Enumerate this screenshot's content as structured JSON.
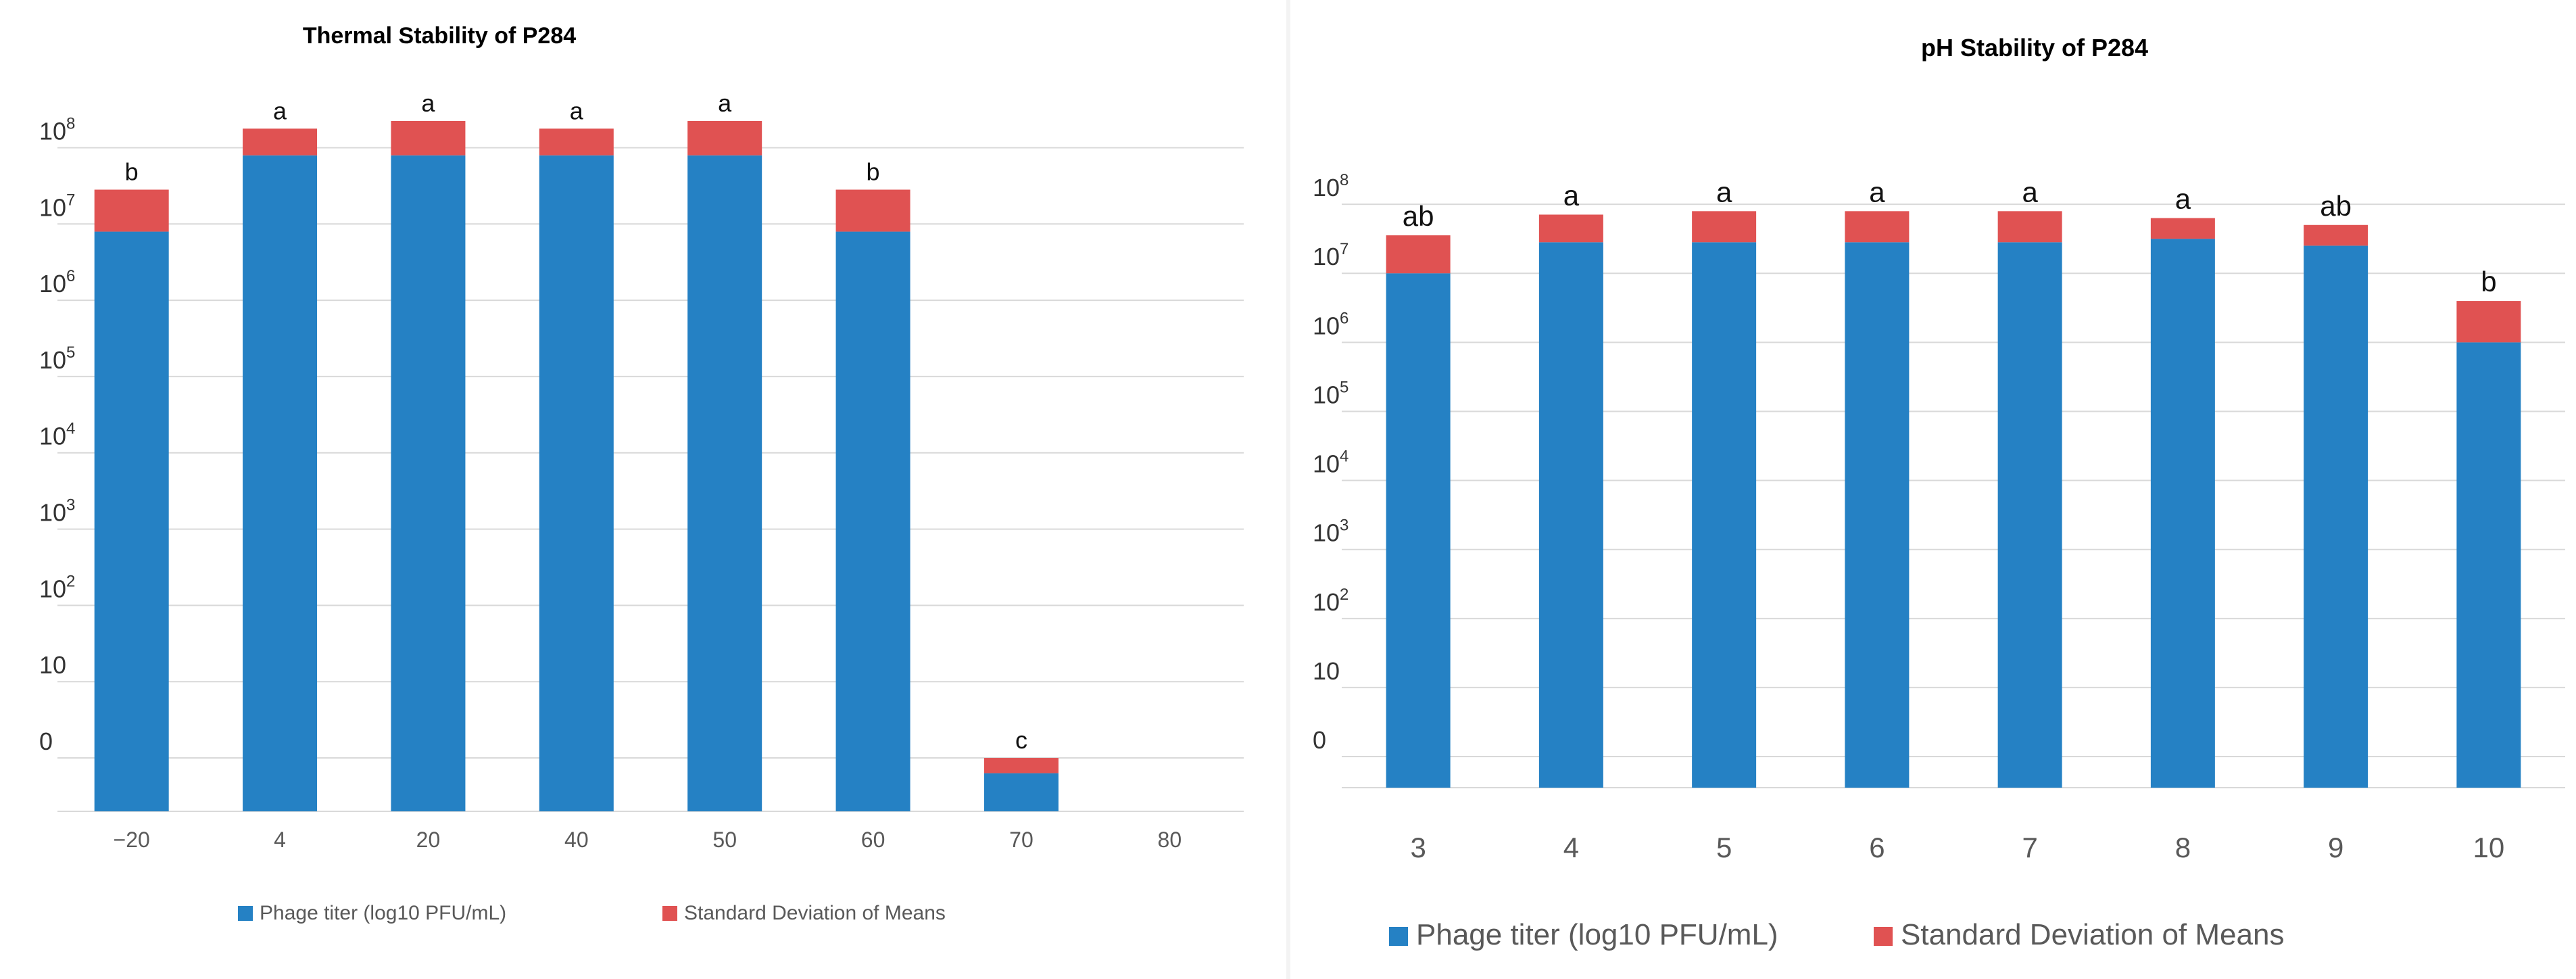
{
  "colors": {
    "titer": "#2581c4",
    "sd": "#e05252",
    "grid": "#d9d9d9"
  },
  "chart_data": [
    {
      "type": "bar",
      "stacked": true,
      "title": "Thermal Stability of P284",
      "xlabel": "",
      "ylabel": "",
      "y_tick_labels": [
        {
          "base": "0",
          "exp": ""
        },
        {
          "base": "10",
          "exp": ""
        },
        {
          "base": "10",
          "exp": "2"
        },
        {
          "base": "10",
          "exp": "3"
        },
        {
          "base": "10",
          "exp": "4"
        },
        {
          "base": "10",
          "exp": "5"
        },
        {
          "base": "10",
          "exp": "6"
        },
        {
          "base": "10",
          "exp": "7"
        },
        {
          "base": "10",
          "exp": "8"
        }
      ],
      "categories": [
        "−20",
        "4",
        "20",
        "40",
        "50",
        "60",
        "70",
        "80"
      ],
      "series": [
        {
          "name": "Phage titer (log10 PFU/mL)",
          "values": [
            6.9,
            7.9,
            7.9,
            7.9,
            7.9,
            6.9,
            -0.2,
            0
          ]
        },
        {
          "name": "Standard Deviation of Means",
          "values": [
            0.55,
            0.35,
            0.45,
            0.35,
            0.45,
            0.55,
            0.2,
            0
          ]
        }
      ],
      "annotations": [
        "b",
        "a",
        "a",
        "a",
        "a",
        "b",
        "c",
        ""
      ],
      "ylim": [
        -0.7,
        9.05
      ],
      "grid": true,
      "legend": "bottom"
    },
    {
      "type": "bar",
      "stacked": true,
      "title": "pH  Stability of P284",
      "xlabel": "",
      "ylabel": "",
      "y_tick_labels": [
        {
          "base": "0",
          "exp": ""
        },
        {
          "base": "10",
          "exp": ""
        },
        {
          "base": "10",
          "exp": "2"
        },
        {
          "base": "10",
          "exp": "3"
        },
        {
          "base": "10",
          "exp": "4"
        },
        {
          "base": "10",
          "exp": "5"
        },
        {
          "base": "10",
          "exp": "6"
        },
        {
          "base": "10",
          "exp": "7"
        },
        {
          "base": "10",
          "exp": "8"
        }
      ],
      "categories": [
        "3",
        "4",
        "5",
        "6",
        "7",
        "8",
        "9",
        "10"
      ],
      "series": [
        {
          "name": "Phage titer (log10 PFU/mL)",
          "values": [
            7.0,
            7.45,
            7.45,
            7.45,
            7.45,
            7.5,
            7.4,
            6.0
          ]
        },
        {
          "name": "Standard Deviation of Means",
          "values": [
            0.55,
            0.4,
            0.45,
            0.45,
            0.45,
            0.3,
            0.3,
            0.6
          ]
        }
      ],
      "annotations": [
        "ab",
        "a",
        "a",
        "a",
        "a",
        "a",
        "ab",
        "b"
      ],
      "ylim": [
        -0.45,
        9.0
      ],
      "grid": true,
      "legend": "bottom"
    }
  ]
}
